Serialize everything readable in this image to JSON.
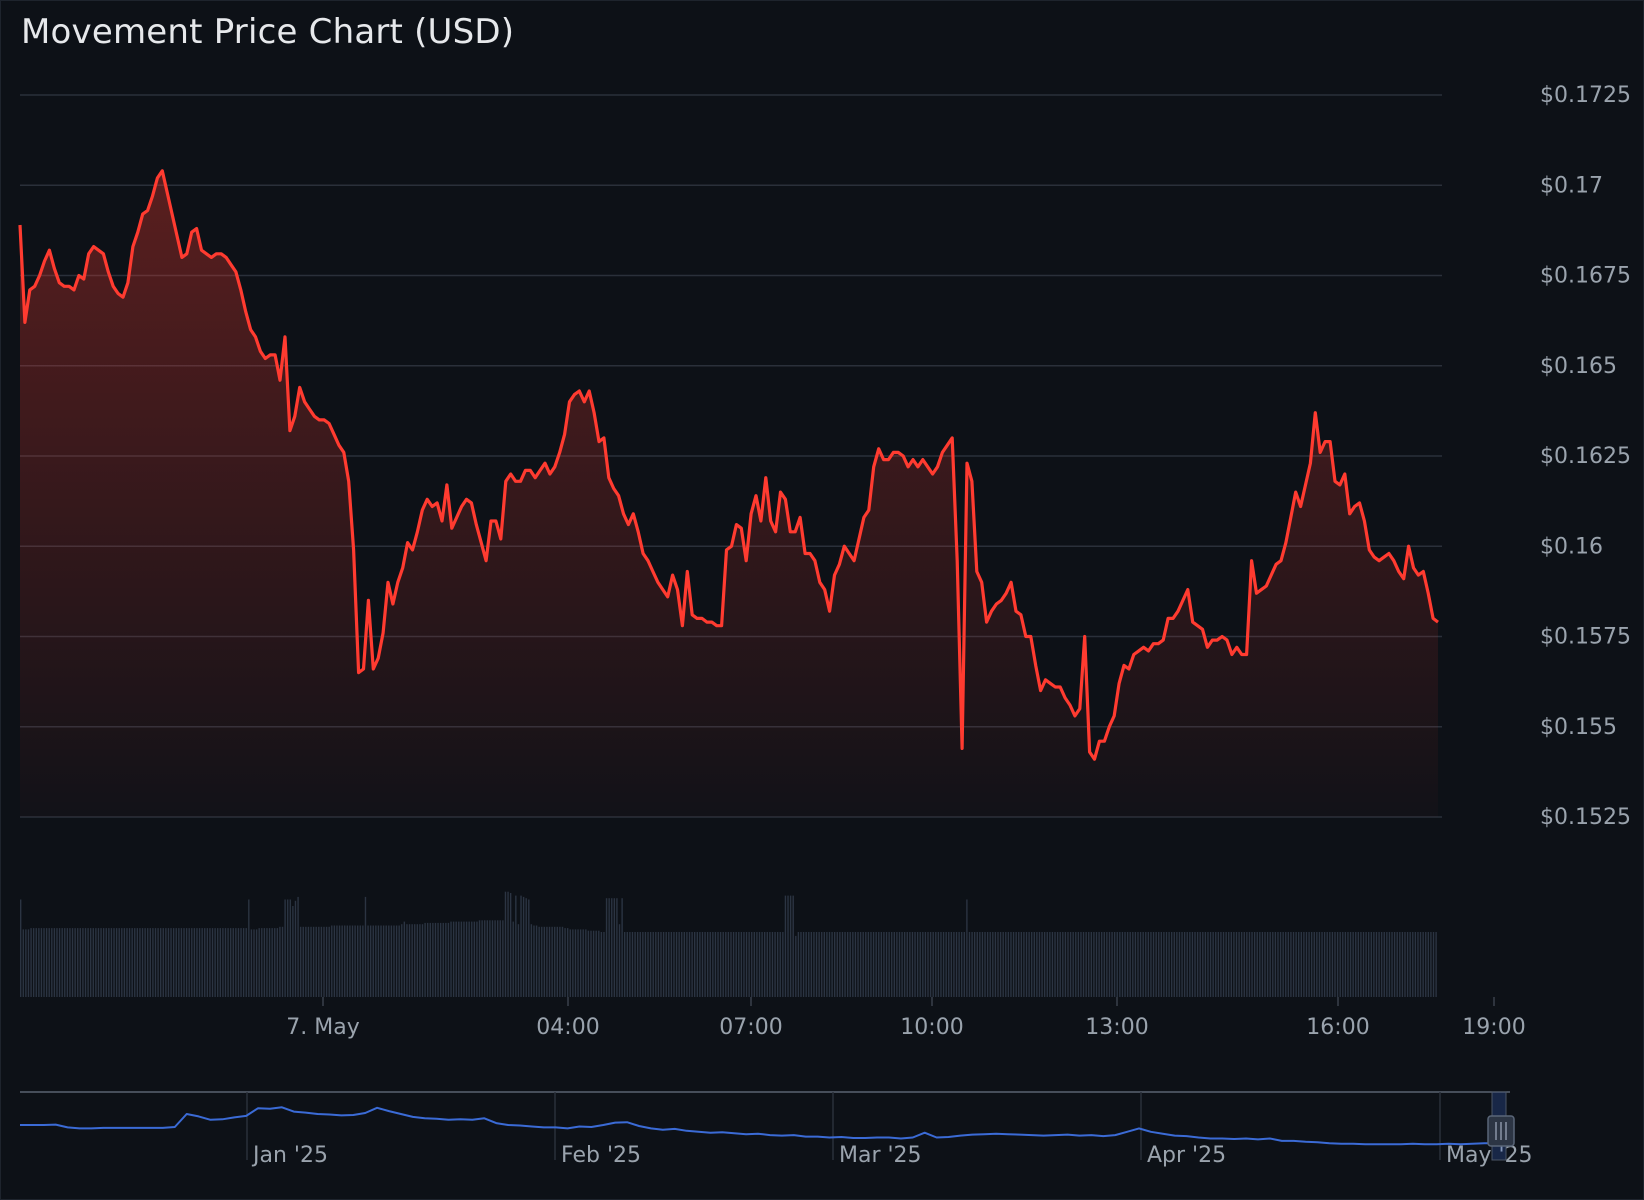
{
  "title": "Movement Price Chart (USD)",
  "colors": {
    "background": "#0d1117",
    "price_line": "#ff3b30",
    "volume_bar": "#2b3442",
    "navigator_line": "#3b6bd6",
    "grid": "#2a303a",
    "text": "#9aa3ad"
  },
  "chart_data": [
    {
      "type": "line",
      "title": "Movement Price Chart (USD)",
      "series": [
        {
          "values": [
            0.1689,
            0.1662,
            0.1671,
            0.1672,
            0.1675,
            0.1679,
            0.1682,
            0.1677,
            0.1673,
            0.1672,
            0.1672,
            0.1671,
            0.1675,
            0.1674,
            0.1681,
            0.1683,
            0.1682,
            0.1681,
            0.1676,
            0.1672,
            0.167,
            0.1669,
            0.1673,
            0.1683,
            0.1687,
            0.1692,
            0.1693,
            0.1697,
            0.1702,
            0.1704,
            0.1698,
            0.1692,
            0.1686,
            0.168,
            0.1681,
            0.1687,
            0.1688,
            0.1682,
            0.1681,
            0.168,
            0.1681,
            0.1681,
            0.168,
            0.1678,
            0.1676,
            0.1671,
            0.1665,
            0.166,
            0.1658,
            0.1654,
            0.1652,
            0.1653,
            0.1653,
            0.1646,
            0.1658,
            0.1632,
            0.1636,
            0.1644,
            0.164,
            0.1638,
            0.1636,
            0.1635,
            0.1635,
            0.1634,
            0.1631,
            0.1628,
            0.1626,
            0.1618,
            0.1599,
            0.1565,
            0.1566,
            0.1585,
            0.1566,
            0.1569,
            0.1576,
            0.159,
            0.1584,
            0.159,
            0.1594,
            0.1601,
            0.1599,
            0.1604,
            0.161,
            0.1613,
            0.1611,
            0.1612,
            0.1607,
            0.1617,
            0.1605,
            0.1608,
            0.1611,
            0.1613,
            0.1612,
            0.1606,
            0.1601,
            0.1596,
            0.1607,
            0.1607,
            0.1602,
            0.1618,
            0.162,
            0.1618,
            0.1618,
            0.1621,
            0.1621,
            0.1619,
            0.1621,
            0.1623,
            0.162,
            0.1622,
            0.1626,
            0.1631,
            0.164,
            0.1642,
            0.1643,
            0.164,
            0.1643,
            0.1637,
            0.1629,
            0.163,
            0.1619,
            0.1616,
            0.1614,
            0.1609,
            0.1606,
            0.1609,
            0.1604,
            0.1598,
            0.1596,
            0.1593,
            0.159,
            0.1588,
            0.1586,
            0.1592,
            0.1588,
            0.1578,
            0.1593,
            0.1581,
            0.158,
            0.158,
            0.1579,
            0.1579,
            0.1578,
            0.1578,
            0.1599,
            0.16,
            0.1606,
            0.1605,
            0.1596,
            0.1609,
            0.1614,
            0.1607,
            0.1619,
            0.1607,
            0.1604,
            0.1615,
            0.1613,
            0.1604,
            0.1604,
            0.1608,
            0.1598,
            0.1598,
            0.1596,
            0.159,
            0.1588,
            0.1582,
            0.1592,
            0.1595,
            0.16,
            0.1598,
            0.1596,
            0.1602,
            0.1608,
            0.161,
            0.1622,
            0.1627,
            0.1624,
            0.1624,
            0.1626,
            0.1626,
            0.1625,
            0.1622,
            0.1624,
            0.1622,
            0.1624,
            0.1622,
            0.162,
            0.1622,
            0.1626,
            0.1628,
            0.163,
            0.1596,
            0.1544,
            0.1623,
            0.1618,
            0.1593,
            0.159,
            0.1579,
            0.1582,
            0.1584,
            0.1585,
            0.1587,
            0.159,
            0.1582,
            0.1581,
            0.1575,
            0.1575,
            0.1567,
            0.156,
            0.1563,
            0.1562,
            0.1561,
            0.1561,
            0.1558,
            0.1556,
            0.1553,
            0.1555,
            0.1575,
            0.1543,
            0.1541,
            0.1546,
            0.1546,
            0.155,
            0.1553,
            0.1562,
            0.1567,
            0.1566,
            0.157,
            0.1571,
            0.1572,
            0.1571,
            0.1573,
            0.1573,
            0.1574,
            0.158,
            0.158,
            0.1582,
            0.1585,
            0.1588,
            0.1579,
            0.1578,
            0.1577,
            0.1572,
            0.1574,
            0.1574,
            0.1575,
            0.1574,
            0.157,
            0.1572,
            0.157,
            0.157,
            0.1596,
            0.1587,
            0.1588,
            0.1589,
            0.1592,
            0.1595,
            0.1596,
            0.1601,
            0.1608,
            0.1615,
            0.1611,
            0.1617,
            0.1623,
            0.1637,
            0.1626,
            0.1629,
            0.1629,
            0.1618,
            0.1617,
            0.162,
            0.1609,
            0.1611,
            0.1612,
            0.1607,
            0.1599,
            0.1597,
            0.1596,
            0.1597,
            0.1598,
            0.1596,
            0.1593,
            0.1591,
            0.16,
            0.1594,
            0.1592,
            0.1593,
            0.1587,
            0.158,
            0.1579
          ]
        }
      ],
      "ylim": [
        0.1525,
        0.1725
      ],
      "y_ticks": [
        "$0.1525",
        "$0.155",
        "$0.1575",
        "$0.16",
        "$0.1625",
        "$0.165",
        "$0.1675",
        "$0.17",
        "$0.1725"
      ],
      "x_ticks": [
        "7. May",
        "04:00",
        "07:00",
        "10:00",
        "13:00",
        "16:00",
        "19:00"
      ],
      "grid": true,
      "y_axis_side": "right"
    },
    {
      "type": "bar",
      "title": "",
      "values_relative": [
        0.75,
        0.52,
        0.52,
        0.52,
        0.53,
        0.53,
        0.53,
        0.53,
        0.53,
        0.53,
        0.53,
        0.53,
        0.53,
        0.53,
        0.53,
        0.53,
        0.53,
        0.53,
        0.53,
        0.53,
        0.53,
        0.53,
        0.53,
        0.53,
        0.53,
        0.53,
        0.53,
        0.53,
        0.53,
        0.53,
        0.53,
        0.53,
        0.53,
        0.53,
        0.53,
        0.53,
        0.53,
        0.53,
        0.53,
        0.53,
        0.53,
        0.53,
        0.53,
        0.53,
        0.53,
        0.53,
        0.53,
        0.53,
        0.53,
        0.53,
        0.53,
        0.53,
        0.53,
        0.53,
        0.53,
        0.53,
        0.53,
        0.53,
        0.53,
        0.53,
        0.53,
        0.53,
        0.53,
        0.53,
        0.53,
        0.53,
        0.53,
        0.53,
        0.53,
        0.53,
        0.53,
        0.53,
        0.53,
        0.53,
        0.53,
        0.53,
        0.53,
        0.53,
        0.53,
        0.53,
        0.53,
        0.53,
        0.53,
        0.53,
        0.53,
        0.53,
        0.53,
        0.53,
        0.75,
        0.52,
        0.52,
        0.52,
        0.53,
        0.53,
        0.53,
        0.53,
        0.53,
        0.53,
        0.53,
        0.53,
        0.54,
        0.54,
        0.75,
        0.75,
        0.75,
        0.7,
        0.74,
        0.77,
        0.54,
        0.54,
        0.54,
        0.54,
        0.54,
        0.54,
        0.54,
        0.54,
        0.54,
        0.54,
        0.54,
        0.54,
        0.55,
        0.55,
        0.55,
        0.55,
        0.55,
        0.55,
        0.55,
        0.55,
        0.55,
        0.55,
        0.55,
        0.55,
        0.55,
        0.77,
        0.55,
        0.55,
        0.55,
        0.55,
        0.55,
        0.55,
        0.55,
        0.55,
        0.55,
        0.55,
        0.55,
        0.55,
        0.55,
        0.56,
        0.58,
        0.56,
        0.56,
        0.56,
        0.56,
        0.56,
        0.56,
        0.56,
        0.57,
        0.57,
        0.57,
        0.57,
        0.57,
        0.57,
        0.57,
        0.57,
        0.57,
        0.57,
        0.58,
        0.58,
        0.58,
        0.58,
        0.58,
        0.58,
        0.58,
        0.58,
        0.58,
        0.58,
        0.58,
        0.59,
        0.59,
        0.59,
        0.59,
        0.59,
        0.59,
        0.59,
        0.59,
        0.59,
        0.59,
        0.81,
        0.81,
        0.8,
        0.58,
        0.78,
        0.56,
        0.78,
        0.77,
        0.76,
        0.75,
        0.56,
        0.55,
        0.55,
        0.54,
        0.54,
        0.54,
        0.54,
        0.54,
        0.54,
        0.54,
        0.54,
        0.54,
        0.54,
        0.53,
        0.53,
        0.52,
        0.52,
        0.52,
        0.52,
        0.52,
        0.52,
        0.52,
        0.51,
        0.51,
        0.51,
        0.51,
        0.51,
        0.5,
        0.5,
        0.76,
        0.76,
        0.76,
        0.76,
        0.76,
        0.56,
        0.76,
        0.5,
        0.5,
        0.5,
        0.5,
        0.5,
        0.5,
        0.5,
        0.5,
        0.5,
        0.5,
        0.5,
        0.5,
        0.5,
        0.5,
        0.5,
        0.5,
        0.5,
        0.5,
        0.5,
        0.5,
        0.5,
        0.5,
        0.5,
        0.5,
        0.5,
        0.5,
        0.5,
        0.5,
        0.5,
        0.5,
        0.5,
        0.5,
        0.5,
        0.5,
        0.5,
        0.5,
        0.5,
        0.5,
        0.5,
        0.5,
        0.5,
        0.5,
        0.5,
        0.5,
        0.5,
        0.5,
        0.5,
        0.5,
        0.5,
        0.5,
        0.5,
        0.5,
        0.5,
        0.5,
        0.5,
        0.5,
        0.5,
        0.5,
        0.5,
        0.5,
        0.5,
        0.5,
        0.78,
        0.78,
        0.78,
        0.78,
        0.47,
        0.5,
        0.5,
        0.5,
        0.5,
        0.5,
        0.5,
        0.5,
        0.5,
        0.5,
        0.5,
        0.5,
        0.5,
        0.5,
        0.5,
        0.5,
        0.5,
        0.5,
        0.5,
        0.5,
        0.5,
        0.5,
        0.5,
        0.5,
        0.5,
        0.5,
        0.5,
        0.5,
        0.5,
        0.5,
        0.5,
        0.5,
        0.5,
        0.5,
        0.5,
        0.5,
        0.5,
        0.5,
        0.5,
        0.5,
        0.5,
        0.5,
        0.5,
        0.5,
        0.5,
        0.5,
        0.5,
        0.5,
        0.5,
        0.5,
        0.5,
        0.5,
        0.5,
        0.5,
        0.5,
        0.5,
        0.5,
        0.5,
        0.5,
        0.5,
        0.5,
        0.5,
        0.5,
        0.5,
        0.5,
        0.5,
        0.75,
        0.5,
        0.5,
        0.5,
        0.5,
        0.5,
        0.5,
        0.5,
        0.5,
        0.5,
        0.5,
        0.5,
        0.5,
        0.5,
        0.5,
        0.5,
        0.5,
        0.5,
        0.5,
        0.5,
        0.5,
        0.5,
        0.5,
        0.5,
        0.5,
        0.5,
        0.5,
        0.5,
        0.5,
        0.5,
        0.5,
        0.5,
        0.5,
        0.5,
        0.5,
        0.5,
        0.5,
        0.5,
        0.5,
        0.5,
        0.5,
        0.5,
        0.5,
        0.5,
        0.5,
        0.5,
        0.5,
        0.5,
        0.5,
        0.5,
        0.5,
        0.5,
        0.5,
        0.5,
        0.5,
        0.5,
        0.5,
        0.5,
        0.5,
        0.5,
        0.5,
        0.5,
        0.5,
        0.5,
        0.5,
        0.5,
        0.5,
        0.5,
        0.5,
        0.5,
        0.5,
        0.5,
        0.5,
        0.5,
        0.5,
        0.5,
        0.5,
        0.5,
        0.5,
        0.5,
        0.5,
        0.5,
        0.5,
        0.5,
        0.5,
        0.5,
        0.5,
        0.5,
        0.5,
        0.5,
        0.5,
        0.5,
        0.5,
        0.5,
        0.5,
        0.5,
        0.5,
        0.5,
        0.5,
        0.5,
        0.5,
        0.5,
        0.5,
        0.5,
        0.5,
        0.5,
        0.5,
        0.5,
        0.5,
        0.5,
        0.5,
        0.5,
        0.5,
        0.5,
        0.5,
        0.5,
        0.5,
        0.5,
        0.5,
        0.5,
        0.5,
        0.5,
        0.5,
        0.5,
        0.5,
        0.5,
        0.5,
        0.5,
        0.5,
        0.5,
        0.5,
        0.5,
        0.5,
        0.5,
        0.5,
        0.5,
        0.5,
        0.5,
        0.5,
        0.5,
        0.5,
        0.5,
        0.5,
        0.5,
        0.5,
        0.5,
        0.5,
        0.5,
        0.5,
        0.5,
        0.5,
        0.5,
        0.5,
        0.5,
        0.5,
        0.5,
        0.5,
        0.5,
        0.5,
        0.5,
        0.5,
        0.5,
        0.5,
        0.5,
        0.5,
        0.5,
        0.5,
        0.5,
        0.5,
        0.5,
        0.5,
        0.5,
        0.5,
        0.5,
        0.5,
        0.5,
        0.5,
        0.5,
        0.5,
        0.5,
        0.5,
        0.5
      ]
    },
    {
      "type": "line",
      "title": "",
      "series": [
        {
          "values": [
            0.52,
            0.52,
            0.52,
            0.53,
            0.47,
            0.45,
            0.45,
            0.46,
            0.46,
            0.46,
            0.46,
            0.46,
            0.46,
            0.48,
            0.75,
            0.7,
            0.63,
            0.64,
            0.68,
            0.71,
            0.87,
            0.86,
            0.89,
            0.8,
            0.78,
            0.75,
            0.74,
            0.72,
            0.73,
            0.77,
            0.88,
            0.81,
            0.75,
            0.69,
            0.66,
            0.65,
            0.63,
            0.64,
            0.63,
            0.66,
            0.56,
            0.52,
            0.51,
            0.49,
            0.47,
            0.47,
            0.45,
            0.49,
            0.48,
            0.52,
            0.57,
            0.58,
            0.5,
            0.45,
            0.42,
            0.44,
            0.4,
            0.38,
            0.36,
            0.37,
            0.35,
            0.33,
            0.34,
            0.31,
            0.3,
            0.31,
            0.28,
            0.28,
            0.26,
            0.27,
            0.25,
            0.25,
            0.26,
            0.26,
            0.24,
            0.26,
            0.36,
            0.26,
            0.27,
            0.3,
            0.32,
            0.33,
            0.34,
            0.33,
            0.32,
            0.31,
            0.3,
            0.31,
            0.32,
            0.3,
            0.31,
            0.29,
            0.31,
            0.38,
            0.45,
            0.38,
            0.34,
            0.3,
            0.29,
            0.26,
            0.24,
            0.24,
            0.23,
            0.24,
            0.22,
            0.24,
            0.19,
            0.19,
            0.17,
            0.16,
            0.14,
            0.13,
            0.13,
            0.12,
            0.12,
            0.12,
            0.12,
            0.13,
            0.12,
            0.12,
            0.13,
            0.12,
            0.13,
            0.14,
            0.14,
            0.14
          ]
        }
      ],
      "x_ticks": [
        "Jan '25",
        "Feb '25",
        "Mar '25",
        "Apr '25",
        "May '25"
      ]
    }
  ]
}
